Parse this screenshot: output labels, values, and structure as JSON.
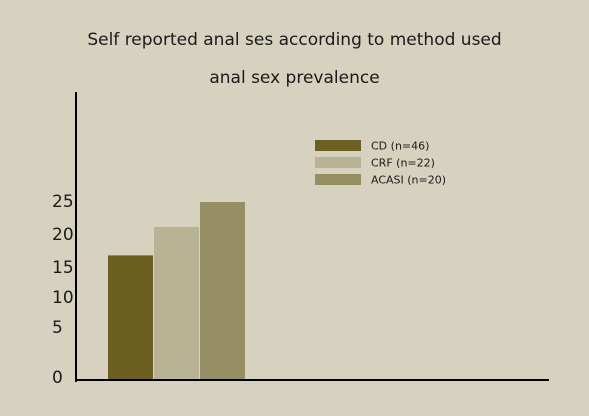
{
  "chart_data": {
    "type": "bar",
    "title": "Self reported anal ses according to method used",
    "subtitle": "anal sex prevalence",
    "xlabel": "",
    "ylabel": "",
    "ylim": [
      0,
      25
    ],
    "y_ticks": [
      {
        "value": 0,
        "label": "0"
      },
      {
        "value": 5,
        "label": "5"
      },
      {
        "value": 10,
        "label": "10"
      },
      {
        "value": 15,
        "label": "15"
      },
      {
        "value": 20,
        "label": "20"
      },
      {
        "value": 25,
        "label": "25"
      }
    ],
    "grid": false,
    "legend_position": "top-right",
    "series": [
      {
        "name": "CD (n=46)",
        "value": 17.5,
        "color": "#6b5f22"
      },
      {
        "name": "CRF (n=22)",
        "value": 21.5,
        "color": "#b7b394"
      },
      {
        "name": "ACASI (n=20)",
        "value": 25,
        "color": "#958f63"
      }
    ]
  }
}
